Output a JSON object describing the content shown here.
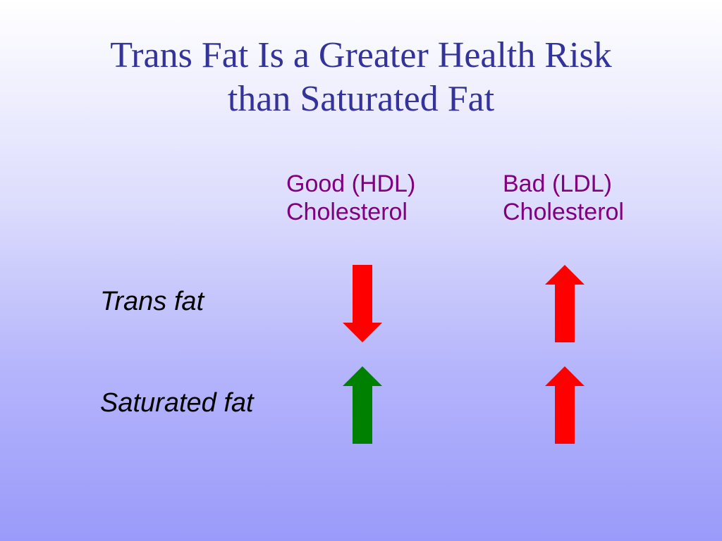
{
  "title": {
    "line1": "Trans Fat Is a Greater Health Risk",
    "line2": "than Saturated Fat"
  },
  "columns": {
    "hdl": {
      "line1": "Good (HDL)",
      "line2": "Cholesterol"
    },
    "ldl": {
      "line1": "Bad (LDL)",
      "line2": "Cholesterol"
    }
  },
  "rows": {
    "trans": {
      "label": "Trans fat",
      "hdl": {
        "direction": "down",
        "color": "#ff0000"
      },
      "ldl": {
        "direction": "up",
        "color": "#ff0000"
      }
    },
    "saturated": {
      "label": "Saturated fat",
      "hdl": {
        "direction": "up",
        "color": "#008000"
      },
      "ldl": {
        "direction": "up",
        "color": "#ff0000"
      }
    }
  },
  "colors": {
    "title": "#333399",
    "column_header": "#800080",
    "bad_arrow": "#ff0000",
    "good_arrow": "#008000"
  }
}
